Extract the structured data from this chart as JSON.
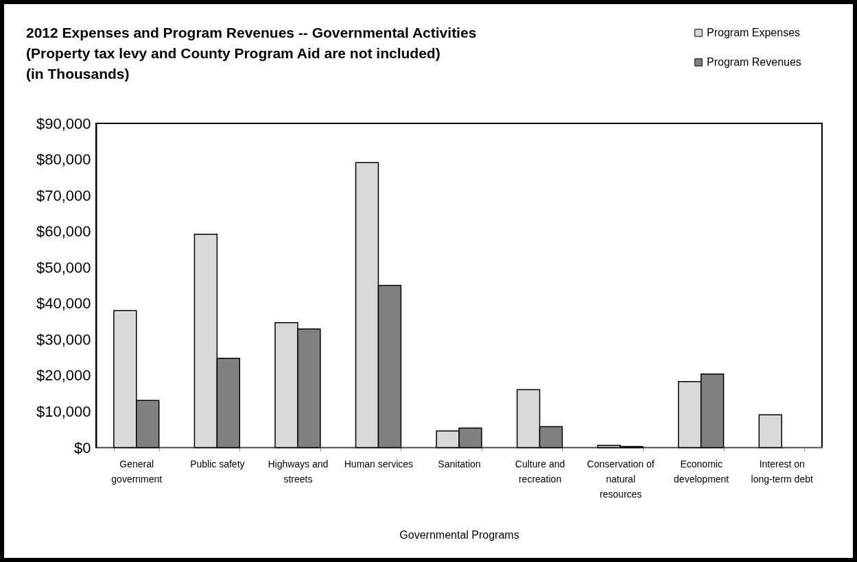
{
  "chart_data": {
    "type": "bar",
    "title": "2012 Expenses and Program Revenues -- Governmental Activities\n(Property tax levy and County Program Aid are not included)\n(in Thousands)",
    "xlabel": "Governmental Programs",
    "categories": [
      "General government",
      "Public safety",
      "Highways and streets",
      "Human services",
      "Sanitation",
      "Culture and recreation",
      "Conservation of natural resources",
      "Economic development",
      "Interest on long-term debt"
    ],
    "series": [
      {
        "name": "Program Expenses",
        "color": "#d9d9d9",
        "values": [
          38000,
          59200,
          34700,
          79100,
          4600,
          16100,
          600,
          18300,
          9100
        ]
      },
      {
        "name": "Program Revenues",
        "color": "#808080",
        "values": [
          13100,
          24800,
          32900,
          45000,
          5400,
          5800,
          300,
          20400,
          null
        ]
      }
    ],
    "ylim": [
      0,
      90000
    ],
    "yticks": [
      {
        "value": 0,
        "label": "$0"
      },
      {
        "value": 10000,
        "label": "$10,000"
      },
      {
        "value": 20000,
        "label": "$20,000"
      },
      {
        "value": 30000,
        "label": "$30,000"
      },
      {
        "value": 40000,
        "label": "$40,000"
      },
      {
        "value": 50000,
        "label": "$50,000"
      },
      {
        "value": 60000,
        "label": "$60,000"
      },
      {
        "value": 70000,
        "label": "$70,000"
      },
      {
        "value": 80000,
        "label": "$80,000"
      },
      {
        "value": 90000,
        "label": "$90,000"
      }
    ],
    "grid": false,
    "legend": "top right"
  }
}
